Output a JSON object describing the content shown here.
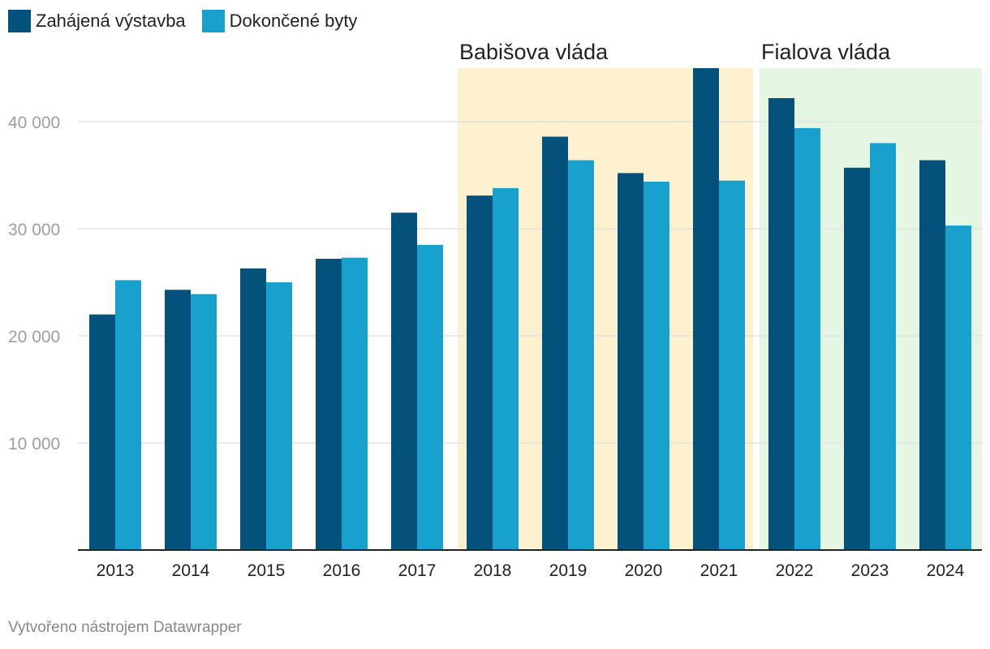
{
  "legend": {
    "items": [
      {
        "label": "Zahájená výstavba",
        "color": "#04527c"
      },
      {
        "label": "Dokončené byty",
        "color": "#18a1cd"
      }
    ]
  },
  "chart_data": {
    "type": "bar",
    "categories": [
      "2013",
      "2014",
      "2015",
      "2016",
      "2017",
      "2018",
      "2019",
      "2020",
      "2021",
      "2022",
      "2023",
      "2024"
    ],
    "series": [
      {
        "name": "Zahájená výstavba",
        "color": "#04527c",
        "values": [
          22000,
          24300,
          26300,
          27200,
          31500,
          33100,
          38600,
          35200,
          45000,
          42200,
          35700,
          36400
        ]
      },
      {
        "name": "Dokončené byty",
        "color": "#18a1cd",
        "values": [
          25200,
          23900,
          25000,
          27300,
          28500,
          33800,
          36400,
          34400,
          34500,
          39400,
          38000,
          30300
        ]
      }
    ],
    "ylim": [
      0,
      45000
    ],
    "yticks": [
      10000,
      20000,
      30000,
      40000
    ],
    "ytick_labels": [
      "10 000",
      "20 000",
      "30 000",
      "40 000"
    ],
    "grid": true,
    "annotations": [
      {
        "label": "Babišova vláda",
        "from": "2018",
        "to": "2021",
        "color": "#fdf1cf"
      },
      {
        "label": "Fialova vláda",
        "from": "2022",
        "to": "2024",
        "color": "#e5f7e3"
      }
    ]
  },
  "footer": {
    "credit": "Vytvořeno nástrojem Datawrapper"
  }
}
